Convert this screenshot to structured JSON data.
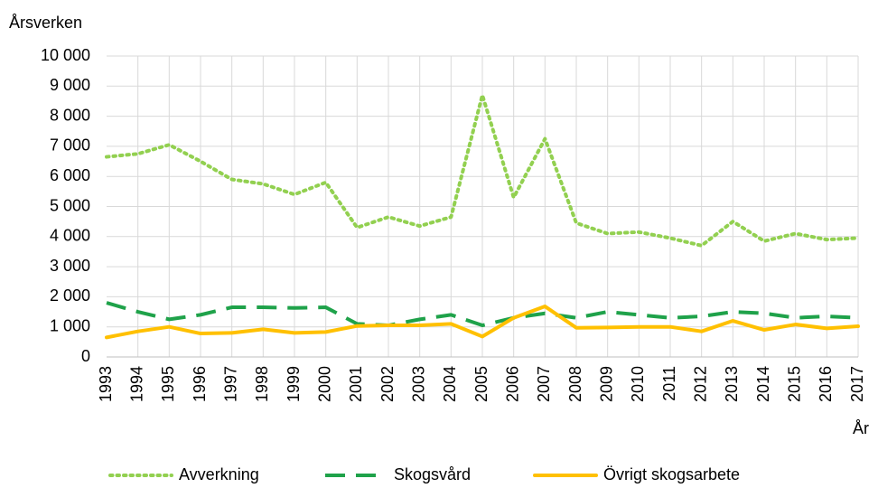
{
  "chart_data": {
    "type": "line",
    "y_label": "Årsverken",
    "x_label": "År",
    "categories": [
      "1993",
      "1994",
      "1995",
      "1996",
      "1997",
      "1998",
      "1999",
      "2000",
      "2001",
      "2002",
      "2003",
      "2004",
      "2005",
      "2006",
      "2007",
      "2008",
      "2009",
      "2010",
      "2011",
      "2012",
      "2013",
      "2014",
      "2015",
      "2016",
      "2017"
    ],
    "series": [
      {
        "name": "Avverkning",
        "color": "#92d050",
        "style": "dotted",
        "values": [
          6650,
          6750,
          7050,
          6500,
          5900,
          5750,
          5400,
          5800,
          4300,
          4650,
          4350,
          4650,
          8700,
          5300,
          7250,
          4450,
          4100,
          4150,
          3950,
          3700,
          4500,
          3850,
          4100,
          3900,
          3950
        ]
      },
      {
        "name": "Skogsvård",
        "color": "#1fa24a",
        "style": "dashed",
        "values": [
          1800,
          1500,
          1250,
          1400,
          1650,
          1650,
          1630,
          1650,
          1100,
          1050,
          1250,
          1400,
          1050,
          1300,
          1450,
          1300,
          1500,
          1400,
          1300,
          1350,
          1500,
          1450,
          1300,
          1350,
          1300
        ]
      },
      {
        "name": "Övrigt skogsarbete",
        "color": "#ffc000",
        "style": "solid",
        "values": [
          650,
          850,
          1000,
          780,
          800,
          920,
          800,
          830,
          1030,
          1050,
          1050,
          1100,
          680,
          1300,
          1680,
          970,
          980,
          1000,
          1000,
          850,
          1200,
          900,
          1080,
          950,
          1020
        ]
      }
    ],
    "ylim": [
      0,
      10000
    ],
    "yticks": [
      0,
      {
        "value": 1000,
        "label": "1 000"
      },
      {
        "value": 2000,
        "label": "2 000"
      },
      {
        "value": 3000,
        "label": "3 000"
      },
      {
        "value": 4000,
        "label": "4 000"
      },
      {
        "value": 5000,
        "label": "5 000"
      },
      {
        "value": 6000,
        "label": "6 000"
      },
      {
        "value": 7000,
        "label": "7 000"
      },
      {
        "value": 8000,
        "label": "8 000"
      },
      {
        "value": 9000,
        "label": "9 000"
      },
      {
        "value": 10000,
        "label": "10 000"
      }
    ],
    "grid": true,
    "legend": "bottom"
  }
}
